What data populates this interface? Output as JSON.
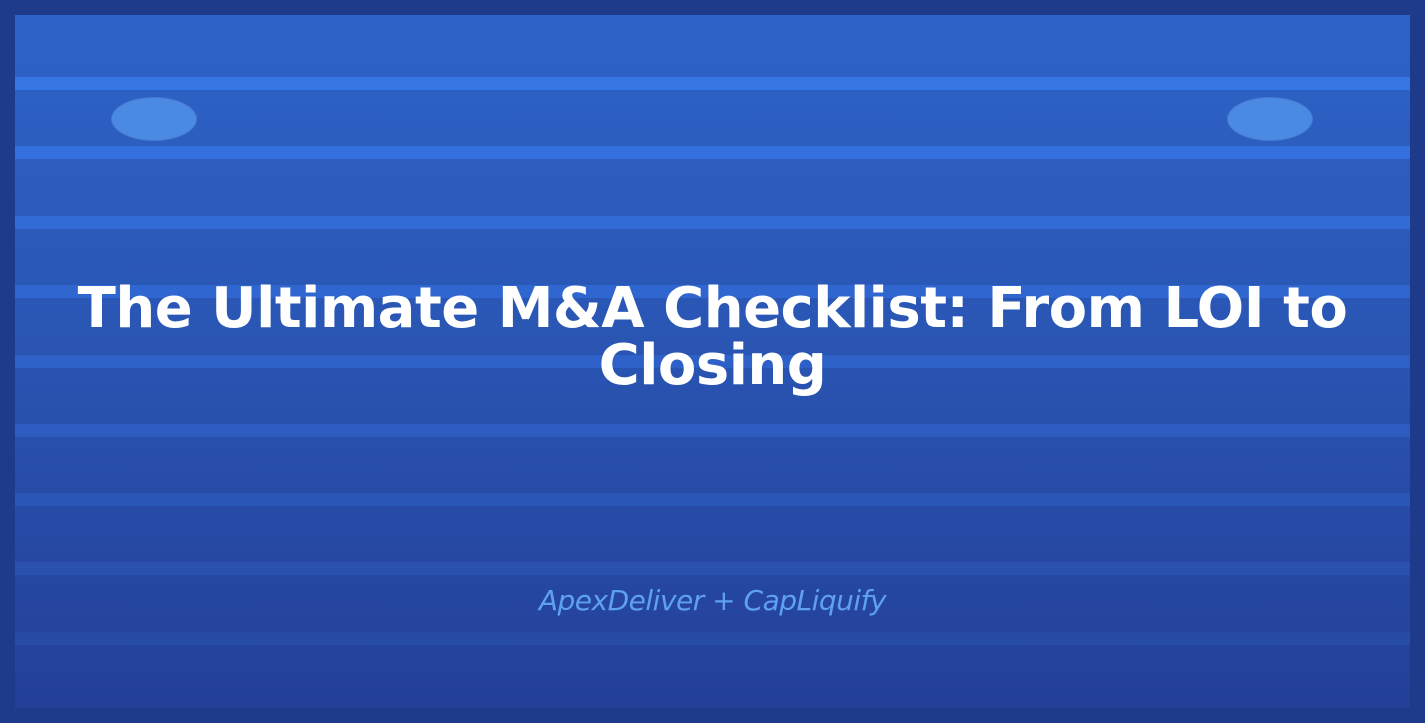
{
  "slide": {
    "title": "The Ultimate M&A Checklist: From LOI to Closing",
    "subtitle": "ApexDeliver + CapLiquify"
  },
  "colors": {
    "outer_frame": "#1e3a8a",
    "background_top": "#2d63c8",
    "background_bottom": "#233f98",
    "stripe_top": "#3676e3",
    "stripe_bottom": "#27479f",
    "oval": "#4b8ae3",
    "title_text": "#ffffff",
    "subtitle_text": "#5ea0f4"
  }
}
